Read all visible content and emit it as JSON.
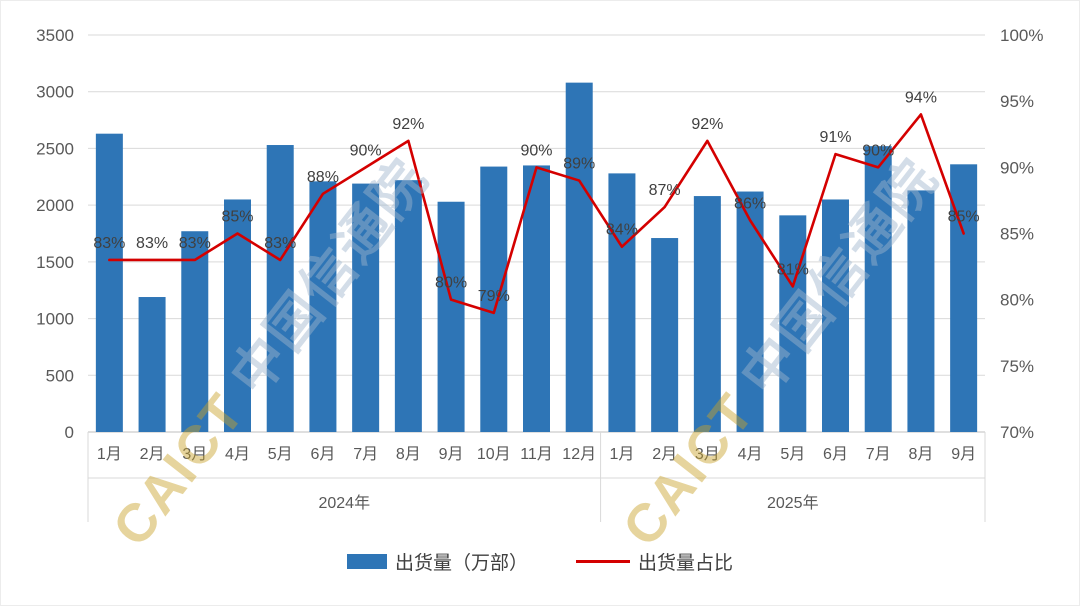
{
  "watermarks": [
    {
      "brand": "CAICT ",
      "name": "中国信通院"
    },
    {
      "brand": "CAICT ",
      "name": "中国信通院"
    }
  ],
  "chart_data": {
    "type": "combo-bar-line",
    "title": "",
    "groups": [
      {
        "label": "2024年",
        "months": [
          "1月",
          "2月",
          "3月",
          "4月",
          "5月",
          "6月",
          "7月",
          "8月",
          "9月",
          "10月",
          "11月",
          "12月"
        ]
      },
      {
        "label": "2025年",
        "months": [
          "1月",
          "2月",
          "3月",
          "4月",
          "5月",
          "6月",
          "7月",
          "8月",
          "9月"
        ]
      }
    ],
    "bar_series": {
      "name": "出货量（万部）",
      "color": "#2E75B6",
      "axis": "left",
      "values": [
        2630,
        1190,
        1770,
        2050,
        2530,
        2210,
        2190,
        2220,
        2030,
        2340,
        2350,
        3080,
        2280,
        1710,
        2080,
        2120,
        1910,
        2050,
        2520,
        2130,
        2360
      ]
    },
    "line_series": {
      "name": "出货量占比",
      "color": "#D40000",
      "axis": "right",
      "values": [
        83,
        83,
        83,
        85,
        83,
        88,
        90,
        92,
        80,
        79,
        90,
        89,
        84,
        87,
        92,
        86,
        81,
        91,
        90,
        94,
        85
      ],
      "labels": [
        "83%",
        "83%",
        "83%",
        "85%",
        "83%",
        "88%",
        "90%",
        "92%",
        "80%",
        "79%",
        "90%",
        "89%",
        "84%",
        "87%",
        "92%",
        "86%",
        "81%",
        "91%",
        "90%",
        "94%",
        "85%"
      ]
    },
    "left_axis": {
      "min": 0,
      "max": 3500,
      "step": 500,
      "ticks": [
        "0",
        "500",
        "1000",
        "1500",
        "2000",
        "2500",
        "3000",
        "3500"
      ]
    },
    "right_axis": {
      "min": 70,
      "max": 100,
      "step": 5,
      "ticks": [
        "70%",
        "75%",
        "80%",
        "85%",
        "90%",
        "95%",
        "100%"
      ]
    },
    "grid": true,
    "legend_position": "bottom"
  },
  "legend": {
    "bar_label": "出货量（万部）",
    "line_label": "出货量占比"
  },
  "colors": {
    "bar": "#2E75B6",
    "line": "#D40000",
    "axis_text": "#595959",
    "data_label": "#404040",
    "gridline": "#D9D9D9",
    "axis_line": "#BFBFBF",
    "watermark_brand": "#C9A227",
    "watermark_name": "#9FB6CE"
  }
}
